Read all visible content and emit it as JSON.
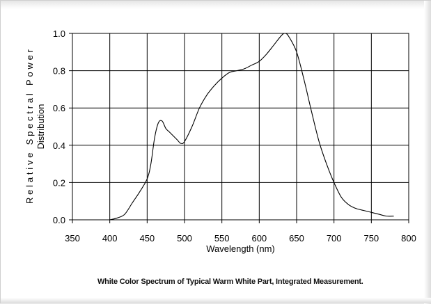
{
  "caption": "White Color Spectrum of Typical Warm White Part, Integrated Measurement.",
  "chart_data": {
    "type": "line",
    "title": "",
    "xlabel": "Wavelength (nm)",
    "ylabel_line1": "Relative Spectral Power",
    "ylabel_line2": "Distribution",
    "xlim": [
      350,
      800
    ],
    "ylim": [
      0.0,
      1.0
    ],
    "xticks": [
      350,
      400,
      450,
      500,
      550,
      600,
      650,
      700,
      750,
      800
    ],
    "yticks": [
      0.0,
      0.2,
      0.4,
      0.6,
      0.8,
      1.0
    ],
    "xtick_labels": [
      "350",
      "400",
      "450",
      "500",
      "550",
      "600",
      "650",
      "700",
      "750",
      "800"
    ],
    "ytick_labels": [
      "0.0",
      "0.2",
      "0.4",
      "0.6",
      "0.8",
      "1.0"
    ],
    "grid": true,
    "legend": "none",
    "series": [
      {
        "color": "#000000",
        "x": [
          400,
          410,
          420,
          430,
          440,
          450,
          455,
          460,
          465,
          470,
          475,
          480,
          490,
          495,
          500,
          510,
          520,
          530,
          540,
          550,
          560,
          570,
          580,
          590,
          600,
          610,
          620,
          630,
          635,
          640,
          650,
          660,
          670,
          680,
          690,
          700,
          710,
          720,
          730,
          740,
          750,
          760,
          770,
          780
        ],
        "y": [
          0.0,
          0.01,
          0.03,
          0.09,
          0.15,
          0.22,
          0.3,
          0.44,
          0.52,
          0.53,
          0.49,
          0.47,
          0.43,
          0.41,
          0.42,
          0.5,
          0.6,
          0.67,
          0.72,
          0.76,
          0.79,
          0.8,
          0.81,
          0.83,
          0.85,
          0.89,
          0.94,
          0.99,
          1.0,
          0.98,
          0.9,
          0.75,
          0.58,
          0.42,
          0.3,
          0.2,
          0.12,
          0.08,
          0.06,
          0.05,
          0.04,
          0.03,
          0.02,
          0.02
        ]
      }
    ]
  }
}
